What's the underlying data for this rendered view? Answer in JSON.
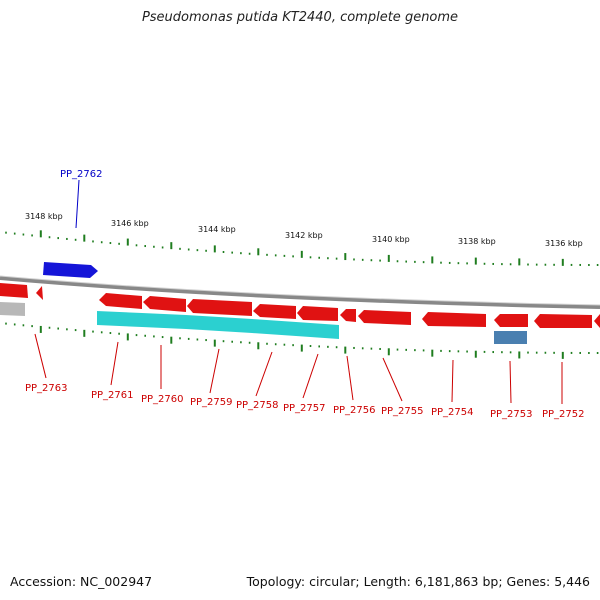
{
  "title": "Pseudomonas putida KT2440, complete genome",
  "footer": {
    "accession": "Accession: NC_002947",
    "summary": "Topology: circular; Length: 6,181,863 bp; Genes: 5,446"
  },
  "colors": {
    "forward_gene": "#1515d8",
    "reverse_gene": "#e01212",
    "rna_like": "#2bd0d0",
    "misc_feature": "#4a7fb0",
    "pseudo": "#b8b8b8",
    "backbone": "#888888",
    "ticks": "#1f7d1f",
    "forward_label": "#0000c8",
    "reverse_label": "#cc0000"
  },
  "scale_labels": [
    "3148 kbp",
    "3146 kbp",
    "3144 kbp",
    "3142 kbp",
    "3140 kbp",
    "3138 kbp",
    "3136 kbp"
  ],
  "genes_forward": [
    {
      "label": "PP_2762",
      "kind": "forward_gene"
    }
  ],
  "genes_reverse": [
    {
      "label": "PP_2763",
      "kind": "reverse_gene"
    },
    {
      "label": "PP_2761",
      "kind": "reverse_gene"
    },
    {
      "label": "PP_2760",
      "kind": "reverse_gene"
    },
    {
      "label": "PP_2759",
      "kind": "reverse_gene"
    },
    {
      "label": "PP_2758",
      "kind": "reverse_gene"
    },
    {
      "label": "PP_2757",
      "kind": "reverse_gene"
    },
    {
      "label": "PP_2756",
      "kind": "reverse_gene"
    },
    {
      "label": "PP_2755",
      "kind": "reverse_gene"
    },
    {
      "label": "PP_2754",
      "kind": "reverse_gene"
    },
    {
      "label": "PP_2753",
      "kind": "misc_feature"
    },
    {
      "label": "PP_2752",
      "kind": "reverse_gene"
    }
  ]
}
